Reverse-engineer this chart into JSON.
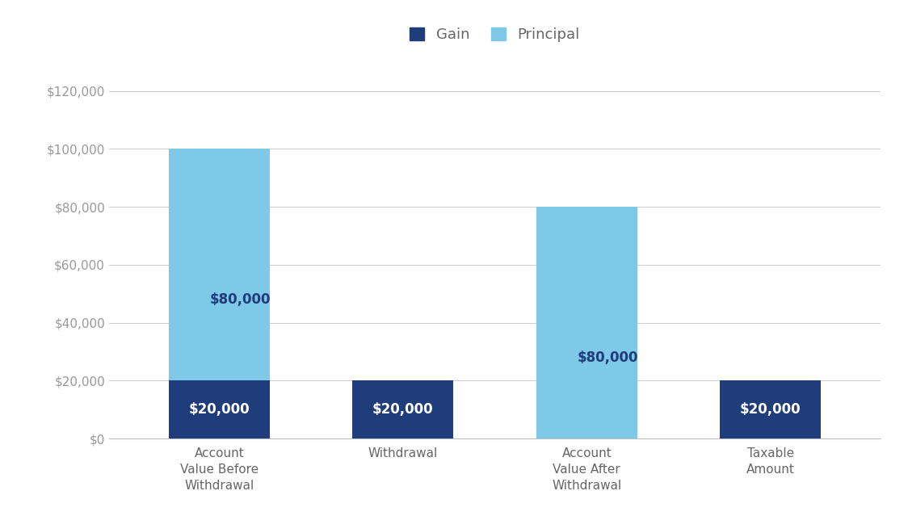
{
  "categories": [
    "Account\nValue Before\nWithdrawal",
    "Withdrawal",
    "Account\nValue After\nWithdrawal",
    "Taxable\nAmount"
  ],
  "gain_values": [
    20000,
    20000,
    0,
    20000
  ],
  "principal_values": [
    80000,
    0,
    80000,
    0
  ],
  "gain_color": "#1f3d7a",
  "principal_color": "#7ec8e8",
  "gain_label": "Gain",
  "principal_label": "Principal",
  "gain_labels": [
    "$20,000",
    "$20,000",
    "",
    "$20,000"
  ],
  "principal_labels": [
    "$80,000",
    "",
    "$80,000",
    ""
  ],
  "ylim": [
    0,
    130000
  ],
  "yticks": [
    0,
    20000,
    40000,
    60000,
    80000,
    100000,
    120000
  ],
  "ytick_labels": [
    "$0",
    "$20,000",
    "$40,000",
    "$60,000",
    "$80,000",
    "$100,000",
    "$120,000"
  ],
  "background_color": "#ffffff",
  "grid_color": "#cccccc",
  "bar_width": 0.55,
  "label_fontsize": 12,
  "tick_fontsize": 11,
  "legend_fontsize": 13,
  "text_color_white": "#ffffff",
  "text_color_dark": "#1f3d7a",
  "gain_label_fontsize": 12,
  "principal_label_fontsize": 12,
  "x_positions": [
    0,
    1,
    2,
    3
  ]
}
